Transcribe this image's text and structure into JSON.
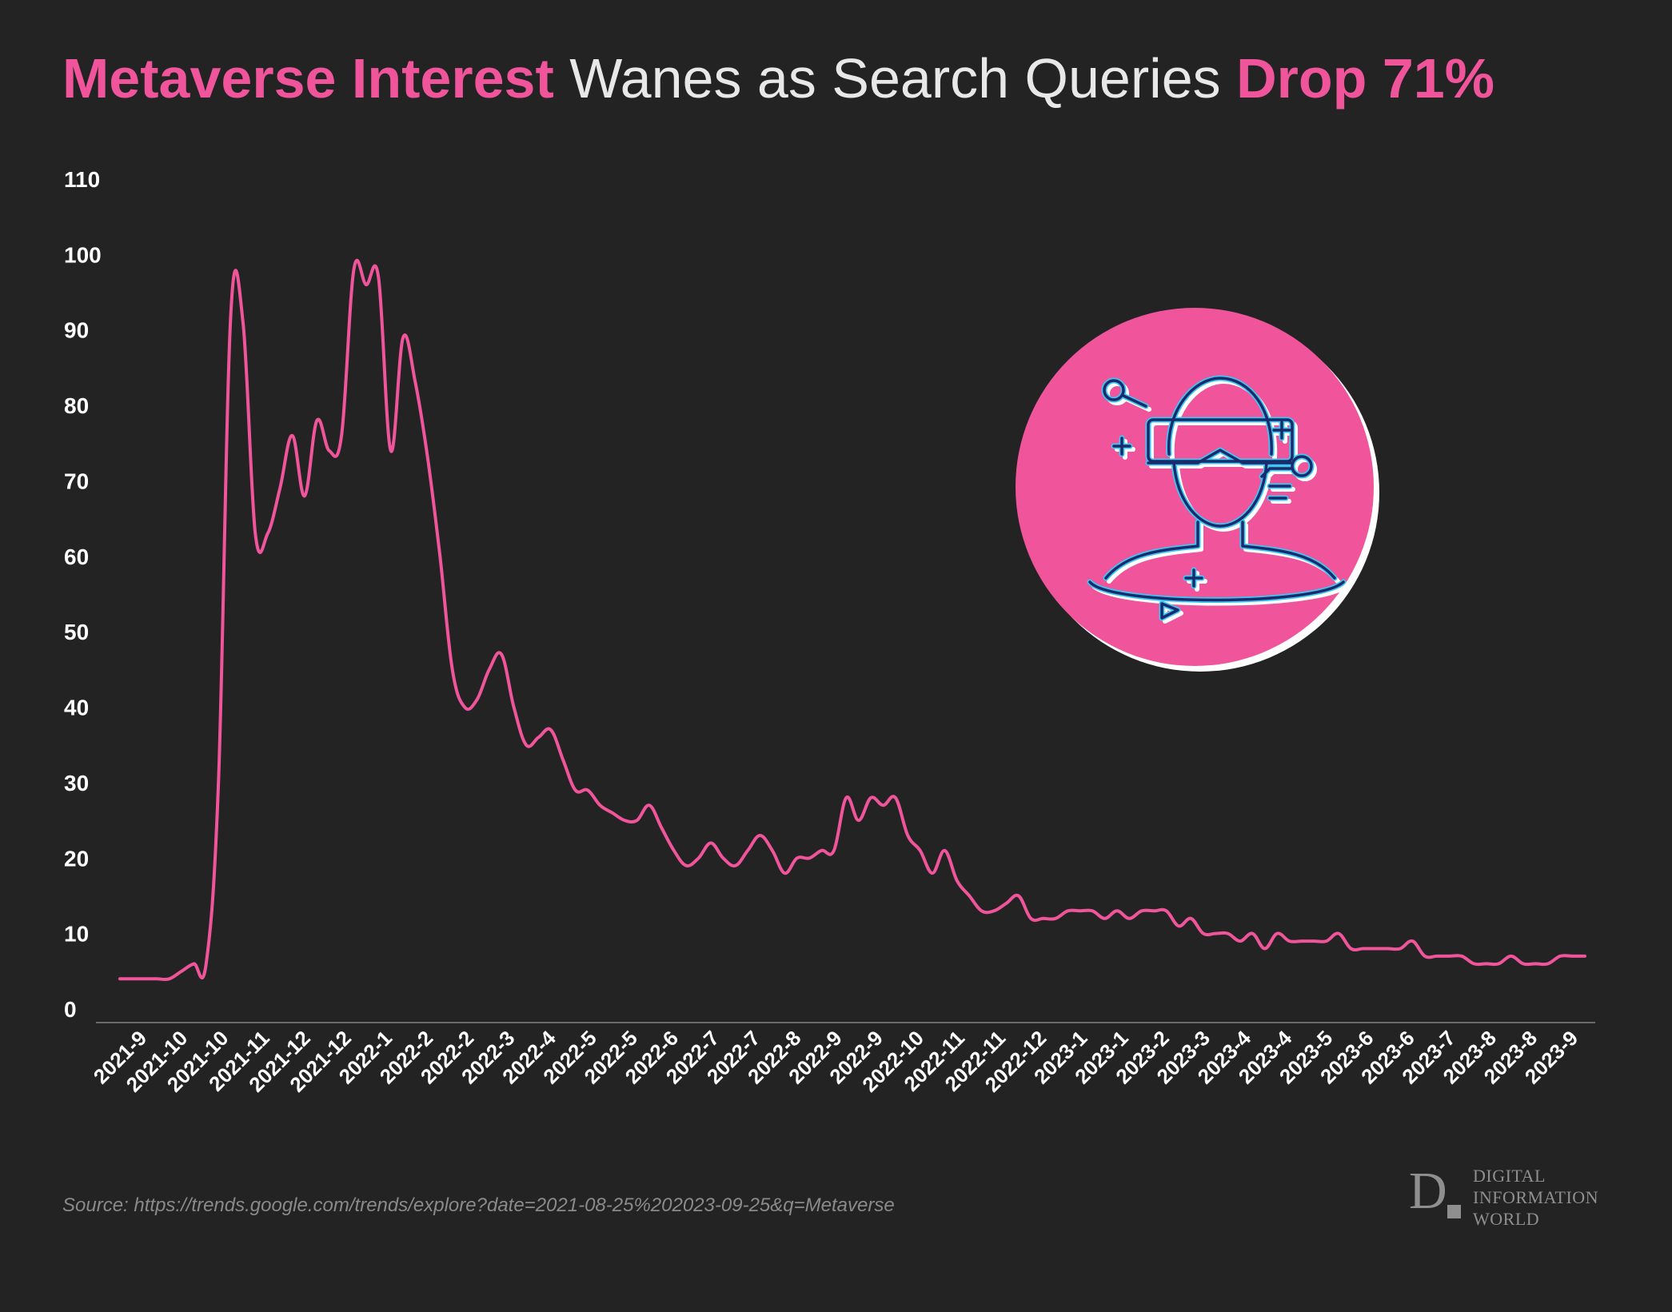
{
  "title": {
    "part1": "Metaverse Interest",
    "part2": " Wanes as Search Queries ",
    "part3": "Drop 71%"
  },
  "source": "Source: https://trends.google.com/trends/explore?date=2021-08-25%202023-09-25&q=Metaverse",
  "logo": {
    "mark": "D",
    "line1": "DIGITAL",
    "line2": "INFORMATION",
    "line3": "WORLD"
  },
  "icon": "vr-headset-person-icon",
  "colors": {
    "background": "#232323",
    "accent": "#f0559c",
    "line": "#f0559c",
    "icon_stroke": "#1b2a6b",
    "icon_glow": "#3ec6f2"
  },
  "chart_data": {
    "type": "line",
    "title": "Metaverse Interest Wanes as Search Queries Drop 71%",
    "xlabel": "",
    "ylabel": "",
    "ylim": [
      0,
      110
    ],
    "yticks": [
      0,
      10,
      20,
      30,
      40,
      50,
      60,
      70,
      80,
      90,
      100,
      110
    ],
    "grid": false,
    "xtick_labels": [
      "2021-9",
      "2021-10",
      "2021-10",
      "2021-11",
      "2021-12",
      "2021-12",
      "2022-1",
      "2022-2",
      "2022-2",
      "2022-3",
      "2022-4",
      "2022-5",
      "2022-5",
      "2022-6",
      "2022-7",
      "2022-7",
      "2022-8",
      "2022-9",
      "2022-9",
      "2022-10",
      "2022-11",
      "2022-11",
      "2022-12",
      "2023-1",
      "2023-1",
      "2023-2",
      "2023-3",
      "2023-4",
      "2023-4",
      "2023-5",
      "2023-6",
      "2023-6",
      "2023-7",
      "2023-8",
      "2023-8",
      "2023-9"
    ],
    "values": [
      4,
      4,
      4,
      4,
      4,
      5,
      6,
      6,
      30,
      92,
      91,
      63,
      63,
      69,
      76,
      68,
      78,
      74,
      76,
      98,
      96,
      97,
      74,
      89,
      83,
      73,
      60,
      45,
      40,
      41,
      45,
      47,
      40,
      35,
      36,
      37,
      33,
      29,
      29,
      27,
      26,
      25,
      25,
      27,
      24,
      21,
      19,
      20,
      22,
      20,
      19,
      21,
      23,
      21,
      18,
      20,
      20,
      21,
      21,
      28,
      25,
      28,
      27,
      28,
      23,
      21,
      18,
      21,
      17,
      15,
      13,
      13,
      14,
      15,
      12,
      12,
      12,
      13,
      13,
      13,
      12,
      13,
      12,
      13,
      13,
      13,
      11,
      12,
      10,
      10,
      10,
      9,
      10,
      8,
      10,
      9,
      9,
      9,
      9,
      10,
      8,
      8,
      8,
      8,
      8,
      9,
      7,
      7,
      7,
      7,
      6,
      6,
      6,
      7,
      6,
      6,
      6,
      7,
      7,
      7
    ]
  }
}
